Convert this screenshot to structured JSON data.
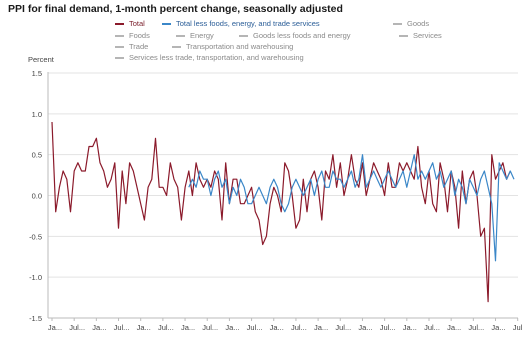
{
  "title": "PPI for final demand, 1-month percent change, seasonally adjusted",
  "legend": {
    "items": [
      {
        "label": "Total",
        "color": "#8b1a2b",
        "active": true
      },
      {
        "label": "Total less foods, energy, and trade services",
        "color": "#3b87c8",
        "active": true
      },
      {
        "label": "Goods",
        "color": "#b5b5b5",
        "active": false
      },
      {
        "label": "Foods",
        "color": "#b5b5b5",
        "active": false
      },
      {
        "label": "Energy",
        "color": "#b5b5b5",
        "active": false
      },
      {
        "label": "Goods less foods and energy",
        "color": "#b5b5b5",
        "active": false
      },
      {
        "label": "Services",
        "color": "#b5b5b5",
        "active": false
      },
      {
        "label": "Trade",
        "color": "#b5b5b5",
        "active": false
      },
      {
        "label": "Transportation and warehousing",
        "color": "#b5b5b5",
        "active": false
      },
      {
        "label": "Services less trade, transportation, and warehousing",
        "color": "#b5b5b5",
        "active": false
      }
    ]
  },
  "chart_data": {
    "type": "line",
    "title": "PPI for final demand, 1-month percent change, seasonally adjusted",
    "ylabel": "Percent",
    "ylim": [
      -1.5,
      1.5
    ],
    "yticks": [
      "1.5",
      "1.0",
      "0.5",
      "0.0",
      "-0.5",
      "-1.0",
      "-1.5"
    ],
    "xtick_labels": [
      "Ja...",
      "Jul...",
      "Ja...",
      "Jul...",
      "Ja...",
      "Jul...",
      "Ja...",
      "Jul...",
      "Ja...",
      "Jul...",
      "Ja...",
      "Jul...",
      "Ja...",
      "Jul...",
      "Ja...",
      "Jul...",
      "Ja...",
      "Jul...",
      "Ja...",
      "Jul...",
      "Ja...",
      "Jul...",
      "Ja...",
      "Jul..."
    ],
    "months_per_tick": 6,
    "grid": "horizontal",
    "series": [
      {
        "name": "Total",
        "color": "#8b1a2b",
        "start_index": 0,
        "values": [
          0.9,
          -0.2,
          0.1,
          0.3,
          0.2,
          -0.2,
          0.3,
          0.4,
          0.3,
          0.3,
          0.6,
          0.6,
          0.7,
          0.4,
          0.3,
          0.1,
          0.2,
          0.4,
          -0.4,
          0.3,
          -0.1,
          0.4,
          0.3,
          0.1,
          -0.1,
          -0.3,
          0.1,
          0.2,
          0.7,
          0.1,
          0.1,
          0.0,
          0.4,
          0.2,
          0.1,
          -0.3,
          0.1,
          0.3,
          0.0,
          0.4,
          0.2,
          0.1,
          0.2,
          0.1,
          0.3,
          0.2,
          -0.3,
          0.4,
          -0.1,
          0.2,
          0.2,
          -0.1,
          -0.1,
          0.0,
          0.1,
          -0.2,
          -0.3,
          -0.6,
          -0.5,
          -0.1,
          0.1,
          0.0,
          -0.2,
          0.4,
          0.3,
          0.0,
          -0.4,
          -0.3,
          0.2,
          -0.2,
          0.2,
          0.3,
          0.1,
          -0.3,
          0.3,
          0.2,
          0.5,
          0.1,
          0.4,
          0.0,
          0.2,
          0.5,
          0.2,
          0.1,
          0.4,
          0.0,
          0.2,
          0.4,
          0.3,
          0.2,
          0.0,
          0.4,
          0.1,
          0.1,
          0.4,
          0.3,
          0.4,
          0.3,
          0.2,
          0.6,
          0.1,
          -0.1,
          0.3,
          -0.1,
          -0.2,
          0.4,
          0.2,
          -0.2,
          0.3,
          0.1,
          -0.4,
          0.3,
          -0.1,
          0.2,
          0.3,
          0.0,
          -0.5,
          -0.4,
          -1.3,
          0.5,
          0.2,
          0.3,
          0.4,
          0.2,
          0.3
        ]
      },
      {
        "name": "Total less foods, energy, and trade services",
        "color": "#3b87c8",
        "start_index": 37,
        "values": [
          0.1,
          0.2,
          0.1,
          0.3,
          0.2,
          0.2,
          0.0,
          0.2,
          0.3,
          0.1,
          0.2,
          -0.1,
          0.1,
          0.0,
          0.2,
          0.1,
          -0.1,
          -0.1,
          0.0,
          0.1,
          0.0,
          -0.1,
          0.1,
          0.2,
          0.1,
          -0.1,
          -0.2,
          -0.1,
          0.1,
          0.2,
          0.1,
          0.0,
          0.1,
          0.2,
          0.0,
          0.2,
          0.3,
          0.1,
          0.1,
          0.3,
          0.2,
          0.2,
          0.1,
          0.2,
          0.3,
          0.1,
          0.2,
          0.5,
          0.1,
          0.2,
          0.3,
          0.2,
          0.1,
          0.2,
          0.3,
          0.2,
          0.1,
          0.2,
          0.3,
          0.1,
          0.3,
          0.5,
          0.2,
          0.3,
          0.2,
          0.3,
          0.4,
          0.2,
          0.3,
          0.1,
          0.2,
          0.3,
          0.0,
          0.2,
          0.1,
          -0.1,
          0.2,
          0.1,
          0.0,
          0.2,
          0.3,
          0.1,
          -0.1,
          -0.8,
          0.4,
          0.3,
          0.2,
          0.3,
          0.2
        ]
      }
    ]
  }
}
